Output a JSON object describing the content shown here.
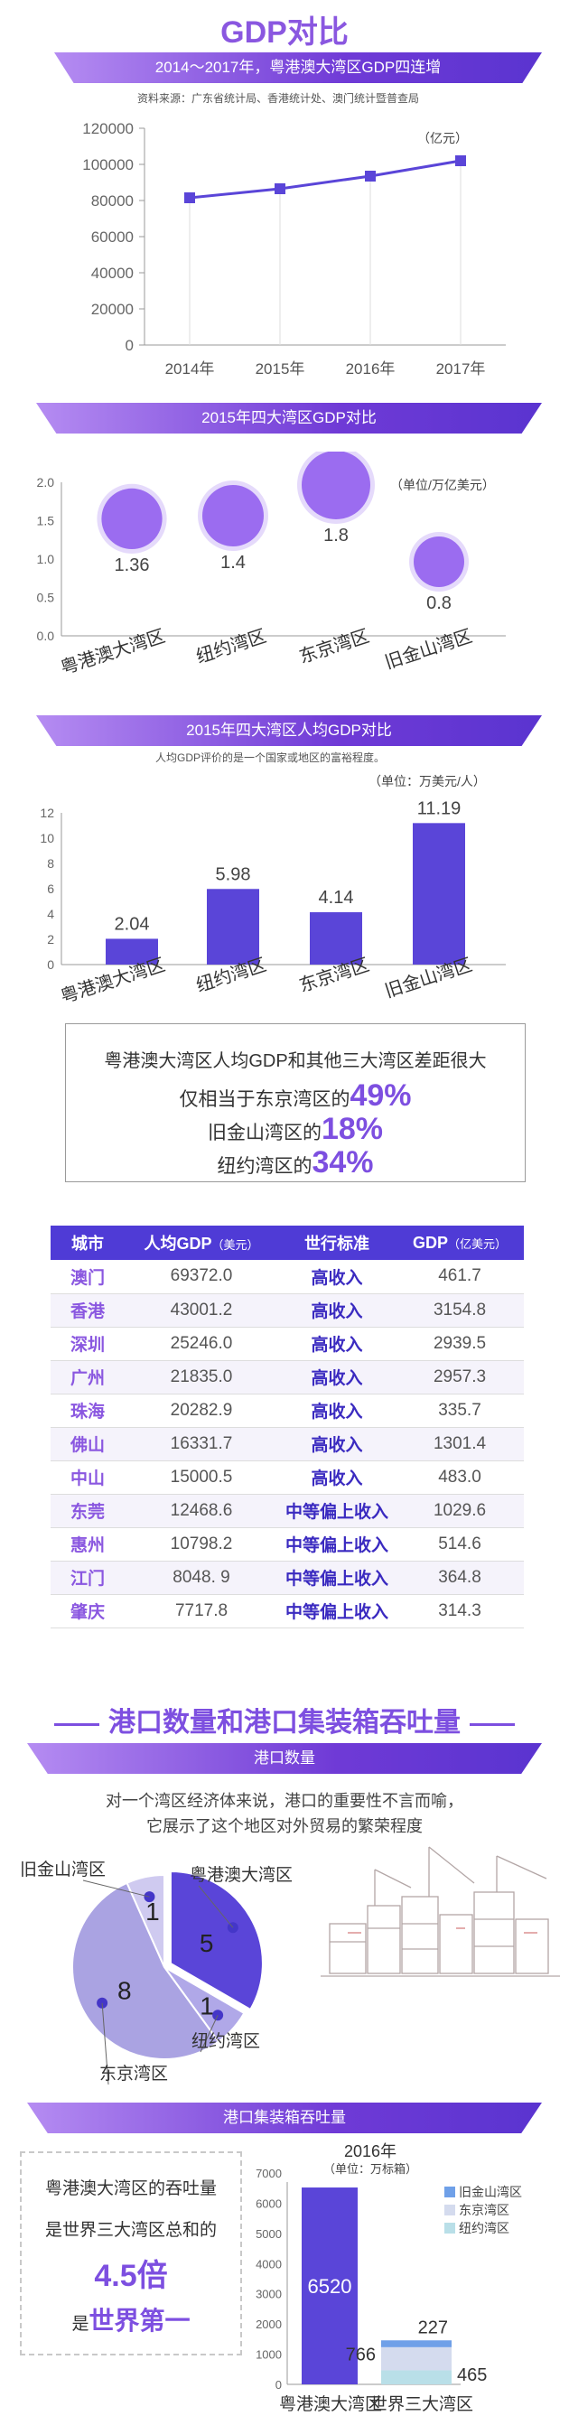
{
  "header": {
    "title": "GDP对比"
  },
  "banner1": {
    "text": "2014～2017年，粤港澳大湾区GDP四连增"
  },
  "source": "资料来源：广东省统计局、香港统计处、澳门统计暨普查局",
  "banner2": {
    "text": "2015年四大湾区GDP对比"
  },
  "banner3": {
    "text": "2015年四大湾区人均GDP对比"
  },
  "chart3_note": "人均GDP评价的是一个国家或地区的富裕程度。",
  "note_box": {
    "line1": "粤港澳大湾区人均GDP和其他三大湾区差距很大",
    "line2_pre": "仅相当于东京湾区的",
    "line2_val": "49%",
    "line3_pre": "旧金山湾区的",
    "line3_val": "18%",
    "line4_pre": "纽约湾区的",
    "line4_val": "34%"
  },
  "table": {
    "headers": {
      "city": "城市",
      "gdp_pc": "人均GDP",
      "gdp_pc_unit": "（美元）",
      "standard": "世行标准",
      "gdp": "GDP",
      "gdp_unit": "（亿美元）"
    },
    "rows": [
      {
        "city": "澳门",
        "gdp_pc": "69372.0",
        "level": "高收入",
        "gdp": "461.7"
      },
      {
        "city": "香港",
        "gdp_pc": "43001.2",
        "level": "高收入",
        "gdp": "3154.8"
      },
      {
        "city": "深圳",
        "gdp_pc": "25246.0",
        "level": "高收入",
        "gdp": "2939.5"
      },
      {
        "city": "广州",
        "gdp_pc": "21835.0",
        "level": "高收入",
        "gdp": "2957.3"
      },
      {
        "city": "珠海",
        "gdp_pc": "20282.9",
        "level": "高收入",
        "gdp": "335.7"
      },
      {
        "city": "佛山",
        "gdp_pc": "16331.7",
        "level": "高收入",
        "gdp": "1301.4"
      },
      {
        "city": "中山",
        "gdp_pc": "15000.5",
        "level": "高收入",
        "gdp": "483.0"
      },
      {
        "city": "东莞",
        "gdp_pc": "12468.6",
        "level": "中等偏上收入",
        "gdp": "1029.6"
      },
      {
        "city": "惠州",
        "gdp_pc": "10798.2",
        "level": "中等偏上收入",
        "gdp": "514.6"
      },
      {
        "city": "江门",
        "gdp_pc": "8048. 9",
        "level": "中等偏上收入",
        "gdp": "364.8"
      },
      {
        "city": "肇庆",
        "gdp_pc": "7717.8",
        "level": "中等偏上收入",
        "gdp": "314.3"
      }
    ]
  },
  "section2": {
    "title": "港口数量和港口集装箱吞吐量"
  },
  "banner4": {
    "text": "港口数量"
  },
  "port_desc": {
    "line1": "对一个湾区经济体来说，港口的重要性不言而喻，",
    "line2": "它展示了这个地区对外贸易的繁荣程度"
  },
  "banner5": {
    "text": "港口集装箱吞吐量"
  },
  "container_note": {
    "line1": "粤港澳大湾区的吞吐量",
    "line2": "是世界三大湾区总和的",
    "line3": "4.5倍",
    "line4_pre": "是",
    "line4_val": "世界第一"
  },
  "colors": {
    "accent": "#5a45d8",
    "purple_light": "#9b6cf0",
    "title": "#8a57e0",
    "legend_sf": "#6fa0e8",
    "legend_tokyo": "#d4dbee",
    "legend_ny": "#b9dfe8"
  },
  "chart_data": [
    {
      "type": "line",
      "x": [
        "2014年",
        "2015年",
        "2016年",
        "2017年"
      ],
      "values": [
        81500,
        86500,
        93500,
        102000
      ],
      "ylim": [
        0,
        120000
      ],
      "yticks": [
        0,
        20000,
        40000,
        60000,
        80000,
        100000,
        120000
      ],
      "unit": "（亿元）",
      "color": "#5a45d8"
    },
    {
      "type": "scatter",
      "categories": [
        "粤港澳大湾区",
        "纽约湾区",
        "东京湾区",
        "旧金山湾区"
      ],
      "values": [
        1.36,
        1.4,
        1.8,
        0.8
      ],
      "labels": [
        "1.36",
        "1.4",
        "1.8",
        "0.8"
      ],
      "ylim": [
        0,
        2.0
      ],
      "yticks": [
        "0.0",
        "0.5",
        "1.0",
        "1.5",
        "2.0"
      ],
      "unit": "（单位/万亿美元）",
      "color": "#9b6cf0"
    },
    {
      "type": "bar",
      "categories": [
        "粤港澳大湾区",
        "纽约湾区",
        "东京湾区",
        "旧金山湾区"
      ],
      "values": [
        2.04,
        5.98,
        4.14,
        11.19
      ],
      "labels": [
        "2.04",
        "5.98",
        "4.14",
        "11.19"
      ],
      "ylim": [
        0,
        12
      ],
      "yticks": [
        0,
        2,
        4,
        6,
        8,
        10,
        12
      ],
      "unit": "（单位：万美元/人）",
      "color": "#5a45d8"
    },
    {
      "type": "pie",
      "categories": [
        "粤港澳大湾区",
        "纽约湾区",
        "东京湾区",
        "旧金山湾区"
      ],
      "values": [
        5,
        1,
        8,
        1
      ],
      "labels": [
        "5",
        "1",
        "8",
        "1"
      ],
      "colors": [
        "#5a45d8",
        "#b0a8e8",
        "#aaa3e2",
        "#cfcaf0"
      ]
    },
    {
      "type": "bar",
      "title": "2016年",
      "unit": "（单位：万标箱）",
      "categories": [
        "粤港澳大湾区",
        "世界三大湾区"
      ],
      "ylim": [
        0,
        7000
      ],
      "yticks": [
        0,
        1000,
        2000,
        3000,
        4000,
        5000,
        6000,
        7000
      ],
      "series": [
        {
          "name": "旧金山湾区",
          "values": [
            0,
            227
          ],
          "color": "#6fa0e8"
        },
        {
          "name": "东京湾区",
          "values": [
            0,
            766
          ],
          "color": "#d4dbee"
        },
        {
          "name": "纽约湾区",
          "values": [
            0,
            465
          ],
          "color": "#b9dfe8"
        }
      ],
      "main_value": 6520,
      "labels": {
        "main": "6520",
        "sf": "227",
        "tokyo": "766",
        "ny": "465"
      }
    }
  ]
}
